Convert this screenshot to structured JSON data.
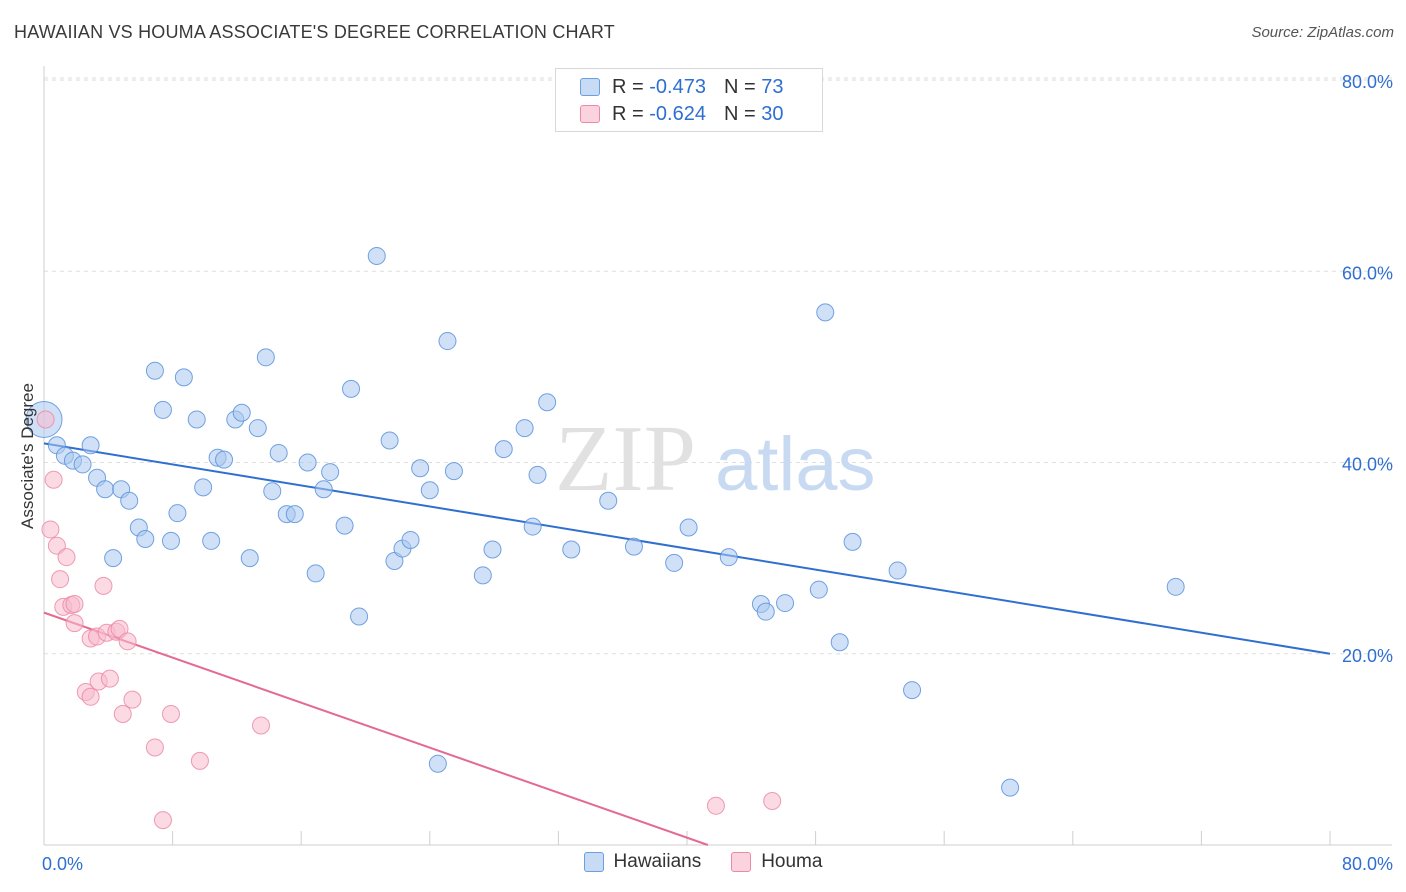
{
  "title": "HAWAIIAN VS HOUMA ASSOCIATE'S DEGREE CORRELATION CHART",
  "source": "Source: ZipAtlas.com",
  "watermark": {
    "zip": "ZIP",
    "atlas": "atlas"
  },
  "legend": {
    "rows": [
      {
        "r_label": "R =",
        "r_value": "-0.473",
        "n_label": "N =",
        "n_value": "73",
        "color": "#a9c8f0",
        "stroke": "#6a9fe0"
      },
      {
        "r_label": "R =",
        "r_value": "-0.624",
        "n_label": "N =",
        "n_value": "30",
        "color": "#f8bccd",
        "stroke": "#ec8aa6"
      }
    ]
  },
  "bottom_legend": [
    {
      "label": "Hawaiians",
      "color": "#a9c8f0",
      "stroke": "#6a9fe0"
    },
    {
      "label": "Houma",
      "color": "#f8bccd",
      "stroke": "#ec8aa6"
    }
  ],
  "chart_data": {
    "type": "scatter",
    "title": "HAWAIIAN VS HOUMA ASSOCIATE'S DEGREE CORRELATION CHART",
    "xlabel": "",
    "ylabel": "Associate's Degree",
    "xlim": [
      0,
      80
    ],
    "ylim": [
      0,
      80
    ],
    "x_tick_labels": [
      "0.0%",
      "80.0%"
    ],
    "y_tick_labels": [
      "20.0%",
      "40.0%",
      "60.0%",
      "80.0%"
    ],
    "y_ticks": [
      20,
      40,
      60,
      80
    ],
    "grid": true,
    "colors": {
      "hawaiians_fill": "#a9c8f0",
      "hawaiians_stroke": "#5b93dc",
      "hawaiians_line": "#2f6fd0",
      "houma_fill": "#f8bccd",
      "houma_stroke": "#ec8aa6",
      "houma_line": "#e56a92",
      "tick_label": "#2f6fd0"
    },
    "series": [
      {
        "name": "Hawaiians",
        "trend": {
          "x": [
            0,
            80
          ],
          "y": [
            42.0,
            20.0
          ]
        },
        "points": [
          [
            0.0,
            44.5,
            "large"
          ],
          [
            0.8,
            41.8
          ],
          [
            1.3,
            40.7
          ],
          [
            1.8,
            40.2
          ],
          [
            2.4,
            39.8
          ],
          [
            2.9,
            41.8
          ],
          [
            3.3,
            38.4
          ],
          [
            3.8,
            37.2
          ],
          [
            4.3,
            30.0
          ],
          [
            4.8,
            37.2
          ],
          [
            5.3,
            36.0
          ],
          [
            5.9,
            33.2
          ],
          [
            6.3,
            32.0
          ],
          [
            6.9,
            49.6
          ],
          [
            7.4,
            45.5
          ],
          [
            7.9,
            31.8
          ],
          [
            8.3,
            34.7
          ],
          [
            8.7,
            48.9
          ],
          [
            9.5,
            44.5
          ],
          [
            9.9,
            37.4
          ],
          [
            10.4,
            31.8
          ],
          [
            10.8,
            40.5
          ],
          [
            11.2,
            40.3
          ],
          [
            11.9,
            44.5
          ],
          [
            12.3,
            45.2
          ],
          [
            12.8,
            30.0
          ],
          [
            13.3,
            43.6
          ],
          [
            13.8,
            51.0
          ],
          [
            14.2,
            37.0
          ],
          [
            14.6,
            41.0
          ],
          [
            15.1,
            34.6
          ],
          [
            15.6,
            34.6
          ],
          [
            16.4,
            40.0
          ],
          [
            16.9,
            28.4
          ],
          [
            17.4,
            37.2
          ],
          [
            17.8,
            39.0
          ],
          [
            18.7,
            33.4
          ],
          [
            19.1,
            47.7
          ],
          [
            19.6,
            23.9
          ],
          [
            20.7,
            61.6
          ],
          [
            21.5,
            42.3
          ],
          [
            21.8,
            29.7
          ],
          [
            22.3,
            31.0
          ],
          [
            22.8,
            31.9
          ],
          [
            23.4,
            39.4
          ],
          [
            24.0,
            37.1
          ],
          [
            24.5,
            8.5
          ],
          [
            25.1,
            52.7
          ],
          [
            25.5,
            39.1
          ],
          [
            27.3,
            28.2
          ],
          [
            27.9,
            30.9
          ],
          [
            28.6,
            41.4
          ],
          [
            29.9,
            43.6
          ],
          [
            30.4,
            33.3
          ],
          [
            30.7,
            38.7
          ],
          [
            31.3,
            46.3
          ],
          [
            32.8,
            30.9
          ],
          [
            35.1,
            36.0
          ],
          [
            36.7,
            31.2
          ],
          [
            39.2,
            29.5
          ],
          [
            40.1,
            33.2
          ],
          [
            42.6,
            30.1
          ],
          [
            44.6,
            25.2
          ],
          [
            44.9,
            24.4
          ],
          [
            46.1,
            25.3
          ],
          [
            48.2,
            26.7
          ],
          [
            48.6,
            55.7
          ],
          [
            49.5,
            21.2
          ],
          [
            50.3,
            31.7
          ],
          [
            53.1,
            28.7
          ],
          [
            54.0,
            16.2
          ],
          [
            60.1,
            6.0
          ],
          [
            70.4,
            27.0
          ]
        ]
      },
      {
        "name": "Houma",
        "trend": {
          "x": [
            0,
            41.3
          ],
          "y": [
            24.3,
            0.0
          ]
        },
        "points": [
          [
            0.1,
            44.5
          ],
          [
            0.6,
            38.2
          ],
          [
            0.4,
            33.0
          ],
          [
            0.8,
            31.3
          ],
          [
            1.0,
            27.8
          ],
          [
            1.4,
            30.1
          ],
          [
            1.2,
            24.9
          ],
          [
            1.7,
            25.1
          ],
          [
            1.9,
            25.2
          ],
          [
            1.9,
            23.2
          ],
          [
            2.6,
            16.0
          ],
          [
            2.9,
            15.5
          ],
          [
            2.9,
            21.6
          ],
          [
            3.4,
            17.1
          ],
          [
            3.3,
            21.8
          ],
          [
            3.7,
            27.1
          ],
          [
            3.9,
            22.2
          ],
          [
            4.1,
            17.4
          ],
          [
            4.5,
            22.3
          ],
          [
            4.7,
            22.6
          ],
          [
            4.9,
            13.7
          ],
          [
            5.2,
            21.3
          ],
          [
            5.5,
            15.2
          ],
          [
            6.9,
            10.2
          ],
          [
            7.4,
            2.6
          ],
          [
            7.9,
            13.7
          ],
          [
            9.7,
            8.8
          ],
          [
            13.5,
            12.5
          ],
          [
            41.8,
            4.1
          ],
          [
            45.3,
            4.6
          ]
        ]
      }
    ]
  }
}
